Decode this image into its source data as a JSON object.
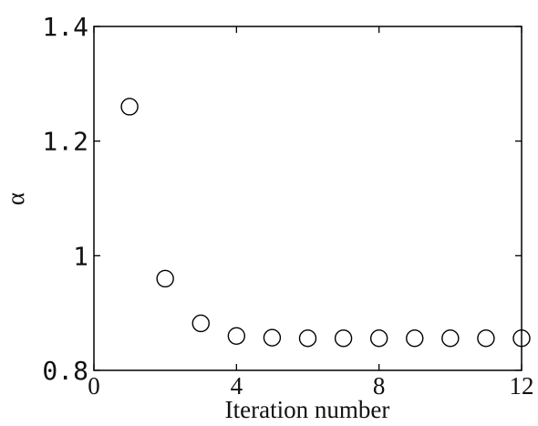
{
  "chart_data": {
    "type": "scatter",
    "title": "",
    "xlabel": "Iteration number",
    "ylabel": "α",
    "xlim": [
      0,
      12
    ],
    "ylim": [
      0.8,
      1.4
    ],
    "xticks": [
      0,
      4,
      8,
      12
    ],
    "xtick_labels": [
      "0",
      "4",
      "8",
      "12"
    ],
    "yticks": [
      0.8,
      1.0,
      1.2,
      1.4
    ],
    "ytick_labels": [
      "0.8",
      "1",
      "1.2",
      "1.4"
    ],
    "grid": false,
    "marker": "open-circle",
    "series": [
      {
        "x": [
          1,
          2,
          3,
          4,
          5,
          6,
          7,
          8,
          9,
          10,
          11,
          12
        ],
        "y": [
          1.26,
          0.96,
          0.882,
          0.86,
          0.857,
          0.856,
          0.856,
          0.856,
          0.856,
          0.856,
          0.856,
          0.856
        ]
      }
    ]
  }
}
